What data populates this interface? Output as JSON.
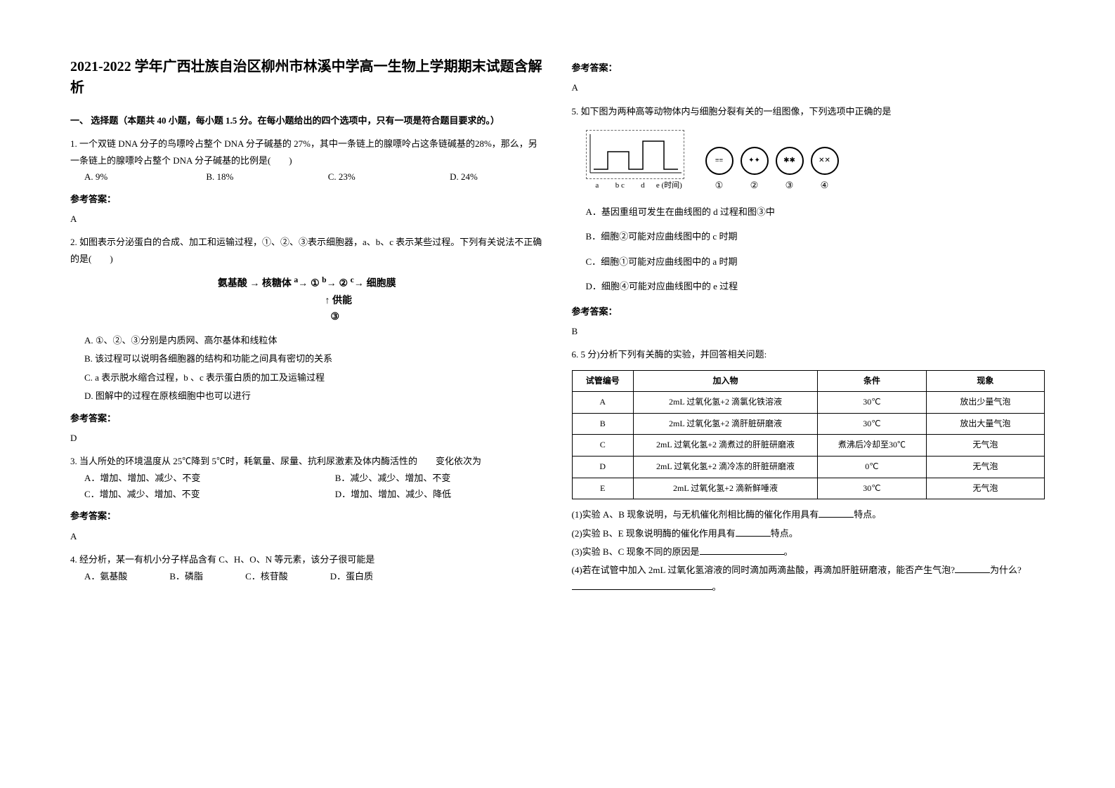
{
  "title": "2021-2022 学年广西壮族自治区柳州市林溪中学高一生物上学期期末试题含解析",
  "section1": "一、 选择题（本题共 40 小题，每小题 1.5 分。在每小题给出的四个选项中，只有一项是符合题目要求的。）",
  "q1": {
    "text": "1. 一个双链 DNA 分子的鸟嘌呤占整个 DNA 分子碱基的 27%，其中一条链上的腺嘌呤占这条链碱基的28%，那么，另一条链上的腺嘌呤占整个 DNA 分子碱基的比例是(　　)",
    "opts": {
      "a": "A. 9%",
      "b": "B. 18%",
      "c": "C. 23%",
      "d": "D. 24%"
    },
    "answer_label": "参考答案：",
    "answer": "A"
  },
  "q2": {
    "text": "2. 如图表示分泌蛋白的合成、加工和运输过程，①、②、③表示细胞器，a、b、c 表示某些过程。下列有关说法不正确的是(　　)",
    "diagram": {
      "line1_a": "氨基酸",
      "line1_b": "核糖体",
      "line1_c": "①",
      "line1_d": "②",
      "line1_e": "细胞膜",
      "label_a": "a",
      "label_b": "b",
      "label_c": "c",
      "line2": "供能",
      "line3": "③"
    },
    "opts": {
      "a": "A. ①、②、③分别是内质网、高尔基体和线粒体",
      "b": "B. 该过程可以说明各细胞器的结构和功能之间具有密切的关系",
      "c": "C. a 表示脱水缩合过程，b 、c 表示蛋白质的加工及运输过程",
      "d": "D. 图解中的过程在原核细胞中也可以进行"
    },
    "answer_label": "参考答案：",
    "answer": "D"
  },
  "q3": {
    "text": "3. 当人所处的环境温度从 25℃降到 5℃时，耗氧量、尿量、抗利尿激素及体内酶活性的　　变化依次为",
    "opts": {
      "a": "A．增加、增加、减少、不变",
      "b": "B．减少、减少、增加、不变",
      "c": "C．增加、减少、增加、不变",
      "d": "D．增加、增加、减少、降低"
    },
    "answer_label": "参考答案：",
    "answer": "A"
  },
  "q4": {
    "text": "4. 经分析，某一有机小分子样品含有 C、H、O、N 等元素，该分子很可能是",
    "opts": {
      "a": "A．氨基酸",
      "b": "B．磷脂",
      "c": "C．核苷酸",
      "d": "D．蛋白质"
    },
    "answer_label": "参考答案：",
    "answer": "A"
  },
  "q5": {
    "text": "5. 如下图为两种高等动物体内与细胞分裂有关的一组图像，下列选项中正确的是",
    "axis_labels": [
      "a",
      "b c",
      "d",
      "e (时间)"
    ],
    "cell_labels": [
      "①",
      "②",
      "③",
      "④"
    ],
    "opts": {
      "a": "A．基因重组可发生在曲线图的 d 过程和图③中",
      "b": "B．细胞②可能对应曲线图中的 c 时期",
      "c": "C．细胞①可能对应曲线图中的 a 时期",
      "d": "D．细胞④可能对应曲线图中的 e 过程"
    },
    "answer_label": "参考答案：",
    "answer": "B"
  },
  "q6": {
    "text": "6. 5 分)分析下列有关酶的实验，并回答相关问题:",
    "table": {
      "headers": [
        "试管编号",
        "加入物",
        "条件",
        "现象"
      ],
      "rows": [
        [
          "A",
          "2mL 过氧化氢+2 滴氯化铁溶液",
          "30℃",
          "放出少量气泡"
        ],
        [
          "B",
          "2mL 过氧化氢+2 滴肝脏研磨液",
          "30℃",
          "放出大量气泡"
        ],
        [
          "C",
          "2mL 过氧化氢+2 滴煮过的肝脏研磨液",
          "煮沸后冷却至30℃",
          "无气泡"
        ],
        [
          "D",
          "2mL 过氧化氢+2 滴冷冻的肝脏研磨液",
          "0℃",
          "无气泡"
        ],
        [
          "E",
          "2mL 过氧化氢+2 滴新鲜唾液",
          "30℃",
          "无气泡"
        ]
      ]
    },
    "sub1_a": "(1)实验 A、B 现象说明，与无机催化剂相比酶的催化作用具有",
    "sub1_b": "特点。",
    "sub2_a": "(2)实验 B、E 现象说明酶的催化作用具有",
    "sub2_b": "特点。",
    "sub3_a": "(3)实验 B、C 现象不同的原因是",
    "sub3_b": "。",
    "sub4_a": "(4)若在试管中加入 2mL 过氧化氢溶液的同时滴加两滴盐酸，再滴加肝脏研磨液，能否产生气泡?",
    "sub4_b": "为什么?",
    "sub4_c": "。"
  }
}
